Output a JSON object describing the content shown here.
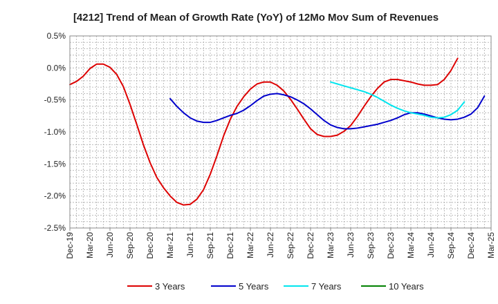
{
  "chart_data": {
    "type": "line",
    "title": "[4212]  Trend of Mean of Growth Rate (YoY) of 12Mo Mov Sum of Revenues",
    "xlabel": "",
    "ylabel": "",
    "x_ticks": [
      "Dec-19",
      "Mar-20",
      "Jun-20",
      "Sep-20",
      "Dec-20",
      "Mar-21",
      "Jun-21",
      "Sep-21",
      "Dec-21",
      "Mar-22",
      "Jun-22",
      "Sep-22",
      "Dec-22",
      "Mar-23",
      "Jun-23",
      "Sep-23",
      "Dec-23",
      "Mar-24",
      "Jun-24",
      "Sep-24",
      "Dec-24",
      "Mar-25"
    ],
    "y_ticks": [
      "0.5%",
      "0.0%",
      "-0.5%",
      "-1.0%",
      "-1.5%",
      "-2.0%",
      "-2.5%"
    ],
    "y_tick_values": [
      0.5,
      0.0,
      -0.5,
      -1.0,
      -1.5,
      -2.0,
      -2.5
    ],
    "ylim": [
      -2.5,
      0.5
    ],
    "x_index_range": [
      0,
      63
    ],
    "grid": true,
    "legend_position": "bottom",
    "series": [
      {
        "name": "3 Years",
        "color": "#dd0000",
        "start_index": 0,
        "values": [
          -0.26,
          -0.21,
          -0.13,
          -0.01,
          0.06,
          0.06,
          0.01,
          -0.1,
          -0.29,
          -0.57,
          -0.88,
          -1.2,
          -1.48,
          -1.71,
          -1.87,
          -2.0,
          -2.1,
          -2.14,
          -2.13,
          -2.05,
          -1.9,
          -1.66,
          -1.37,
          -1.06,
          -0.8,
          -0.6,
          -0.45,
          -0.33,
          -0.25,
          -0.22,
          -0.22,
          -0.27,
          -0.36,
          -0.49,
          -0.64,
          -0.8,
          -0.95,
          -1.04,
          -1.07,
          -1.07,
          -1.05,
          -0.99,
          -0.9,
          -0.76,
          -0.6,
          -0.45,
          -0.32,
          -0.22,
          -0.18,
          -0.18,
          -0.2,
          -0.22,
          -0.25,
          -0.27,
          -0.27,
          -0.26,
          -0.18,
          -0.04,
          0.15
        ]
      },
      {
        "name": "5 Years",
        "color": "#0000cc",
        "start_index": 15,
        "values": [
          -0.48,
          -0.6,
          -0.7,
          -0.78,
          -0.83,
          -0.85,
          -0.85,
          -0.82,
          -0.78,
          -0.74,
          -0.71,
          -0.66,
          -0.59,
          -0.51,
          -0.44,
          -0.41,
          -0.4,
          -0.42,
          -0.45,
          -0.5,
          -0.56,
          -0.64,
          -0.73,
          -0.82,
          -0.89,
          -0.93,
          -0.95,
          -0.95,
          -0.94,
          -0.92,
          -0.9,
          -0.88,
          -0.85,
          -0.82,
          -0.78,
          -0.73,
          -0.7,
          -0.7,
          -0.72,
          -0.75,
          -0.78,
          -0.8,
          -0.81,
          -0.8,
          -0.77,
          -0.72,
          -0.62,
          -0.44
        ]
      },
      {
        "name": "7 Years",
        "color": "#00e5ee",
        "start_index": 39,
        "values": [
          -0.22,
          -0.25,
          -0.28,
          -0.31,
          -0.34,
          -0.37,
          -0.41,
          -0.46,
          -0.52,
          -0.58,
          -0.63,
          -0.67,
          -0.7,
          -0.72,
          -0.74,
          -0.77,
          -0.78,
          -0.77,
          -0.73,
          -0.66,
          -0.53
        ]
      },
      {
        "name": "10 Years",
        "color": "#008000",
        "start_index": 0,
        "values": []
      }
    ]
  }
}
